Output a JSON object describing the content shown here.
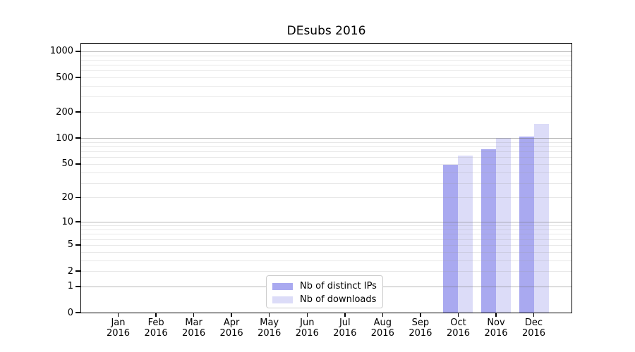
{
  "chart_data": {
    "type": "bar",
    "title": "DEsubs 2016",
    "categories": [
      {
        "month": "Jan",
        "year": "2016"
      },
      {
        "month": "Feb",
        "year": "2016"
      },
      {
        "month": "Mar",
        "year": "2016"
      },
      {
        "month": "Apr",
        "year": "2016"
      },
      {
        "month": "May",
        "year": "2016"
      },
      {
        "month": "Jun",
        "year": "2016"
      },
      {
        "month": "Jul",
        "year": "2016"
      },
      {
        "month": "Aug",
        "year": "2016"
      },
      {
        "month": "Sep",
        "year": "2016"
      },
      {
        "month": "Oct",
        "year": "2016"
      },
      {
        "month": "Nov",
        "year": "2016"
      },
      {
        "month": "Dec",
        "year": "2016"
      }
    ],
    "series": [
      {
        "name": "Nb of distinct IPs",
        "color": "#a9a9f0",
        "values": [
          0,
          0,
          0,
          0,
          0,
          0,
          0,
          0,
          0,
          49,
          74,
          105
        ]
      },
      {
        "name": "Nb of downloads",
        "color": "#dcdcf8",
        "values": [
          0,
          0,
          0,
          0,
          0,
          0,
          0,
          0,
          0,
          63,
          100,
          146
        ]
      }
    ],
    "y_axis": {
      "ticks": [
        0,
        1,
        2,
        5,
        10,
        20,
        50,
        100,
        200,
        500,
        1000
      ],
      "scale": "log10(1+x)",
      "max": 1224
    },
    "grid": {
      "major_at": [
        1,
        10,
        100,
        1000
      ],
      "major_color": "#b6b6b6",
      "minor_color": "#e8e8e8"
    },
    "legend": {
      "position": "bottom-center-inside"
    }
  }
}
